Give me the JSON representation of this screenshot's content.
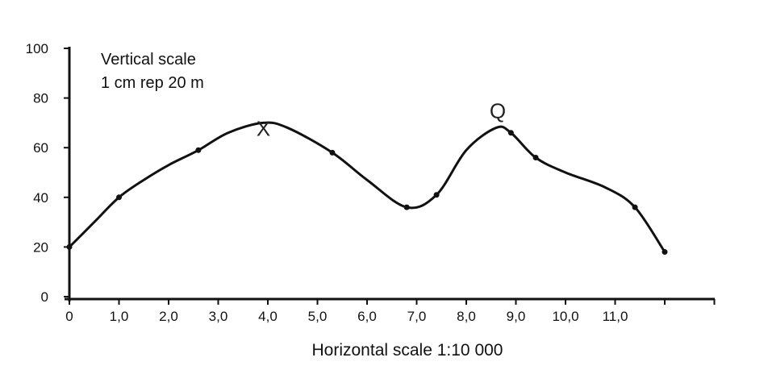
{
  "chart_data": {
    "type": "line",
    "title": "",
    "xlabel": "Horizontal scale 1:10 000",
    "ylabel": "",
    "annotation": [
      "Vertical scale",
      "1 cm rep 20 m"
    ],
    "xlim": [
      0,
      12
    ],
    "ylim": [
      0,
      100
    ],
    "x_ticks": [
      "0",
      "1,0",
      "2,0",
      "3,0",
      "4,0",
      "5,0",
      "6,0",
      "7,0",
      "8,0",
      "9,0",
      "10,0",
      "11,0"
    ],
    "y_ticks": [
      "0",
      "20",
      "40",
      "60",
      "80",
      "100"
    ],
    "grid": false,
    "series": [
      {
        "x": [
          0,
          0.5,
          1.0,
          1.5,
          2.0,
          2.6,
          3.2,
          3.9,
          4.4,
          5.3,
          6.0,
          6.8,
          7.4,
          8.0,
          8.6,
          8.9,
          9.4,
          10.0,
          10.8,
          11.4,
          12.0
        ],
        "y": [
          20,
          30,
          40,
          47,
          53,
          59,
          66,
          70,
          68,
          58,
          47,
          36,
          41,
          59,
          68,
          66,
          56,
          50,
          44,
          36,
          18
        ]
      }
    ],
    "points": [
      {
        "label": "X",
        "x": 3.9,
        "y": 70
      },
      {
        "label": "Q",
        "x": 8.6,
        "y": 68
      }
    ]
  }
}
